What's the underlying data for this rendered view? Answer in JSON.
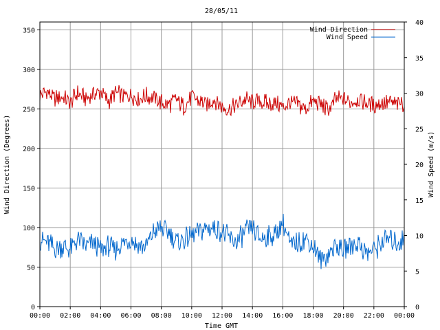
{
  "chart_data": {
    "type": "line",
    "title": "28/05/11",
    "xlabel": "Time GMT",
    "ylabel_left": "Wind Direction (Degrees)",
    "ylabel_right": "Wind Speed (m/s)",
    "x_ticks": [
      "00:00",
      "02:00",
      "04:00",
      "06:00",
      "08:00",
      "10:00",
      "12:00",
      "14:00",
      "16:00",
      "18:00",
      "20:00",
      "22:00",
      "00:00"
    ],
    "x_range_hours": [
      0,
      24
    ],
    "y_left_range": [
      0,
      360
    ],
    "y_left_ticks": [
      0,
      50,
      100,
      150,
      200,
      250,
      300,
      350
    ],
    "y_right_range": [
      0,
      40
    ],
    "y_right_ticks": [
      0,
      5,
      10,
      15,
      20,
      25,
      30,
      35,
      40
    ],
    "grid": true,
    "legend_position": "top-right",
    "series": [
      {
        "name": "Wind Direction",
        "axis": "left",
        "color": "#cc0000",
        "sample_interval_hours": 0.5,
        "values": [
          268,
          272,
          262,
          265,
          258,
          270,
          262,
          268,
          272,
          260,
          270,
          266,
          268,
          262,
          266,
          264,
          258,
          256,
          262,
          252,
          266,
          260,
          256,
          262,
          252,
          250,
          255,
          262,
          258,
          260,
          256,
          258,
          252,
          258,
          255,
          250,
          260,
          256,
          248,
          262,
          262,
          258,
          262,
          258,
          254,
          258,
          258,
          256,
          258
        ]
      },
      {
        "name": "Wind Speed",
        "axis": "right",
        "color": "#0066cc",
        "sample_interval_hours": 0.5,
        "values": [
          9.5,
          9.0,
          8.0,
          8.5,
          8.0,
          9.5,
          8.5,
          9.0,
          8.0,
          8.5,
          8.0,
          9.0,
          9.5,
          8.5,
          8.5,
          10.5,
          11.0,
          10.5,
          9.0,
          9.5,
          10.0,
          10.5,
          11.0,
          11.0,
          10.5,
          9.5,
          9.0,
          10.5,
          11.0,
          9.5,
          10.0,
          10.0,
          12.0,
          8.5,
          9.0,
          9.5,
          8.5,
          6.5,
          7.5,
          8.5,
          8.0,
          8.5,
          9.0,
          7.5,
          8.0,
          9.0,
          9.5,
          9.0,
          9.5
        ]
      }
    ]
  }
}
